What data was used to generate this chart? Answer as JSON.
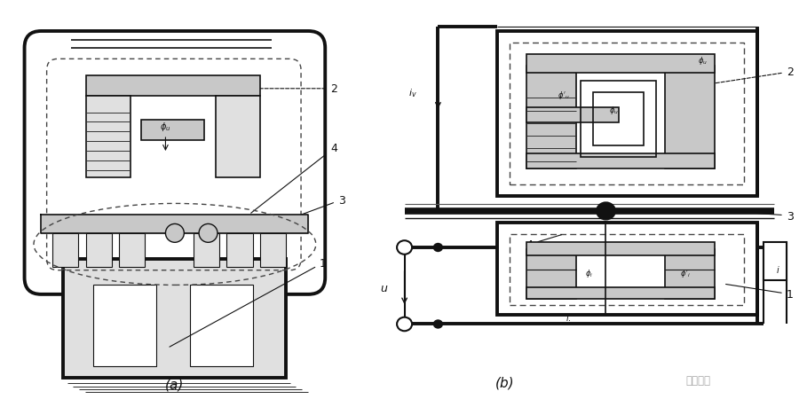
{
  "label_a": "(a)",
  "label_b": "(b)",
  "watermark": "万众久台",
  "lc": "#111111",
  "dc": "#444444",
  "gray1": "#c8c8c8",
  "gray2": "#e0e0e0",
  "white": "#ffffff",
  "tlw": 2.8,
  "nlw": 1.2,
  "dlw": 1.0,
  "fig_w": 9.09,
  "fig_h": 4.6
}
